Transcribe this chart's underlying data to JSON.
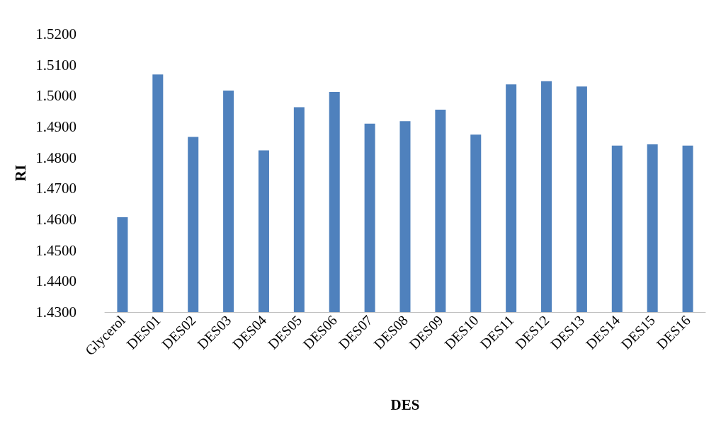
{
  "chart_data": {
    "type": "bar",
    "xlabel": "DES",
    "ylabel": "RI",
    "categories": [
      "Glycerol",
      "DES01",
      "DES02",
      "DES03",
      "DES04",
      "DES05",
      "DES06",
      "DES07",
      "DES08",
      "DES09",
      "DES10",
      "DES11",
      "DES12",
      "DES13",
      "DES14",
      "DES15",
      "DES16"
    ],
    "values": [
      1.4607,
      1.5069,
      1.4867,
      1.5017,
      1.4823,
      1.4963,
      1.5012,
      1.491,
      1.4918,
      1.4955,
      1.4874,
      1.5037,
      1.5047,
      1.503,
      1.4839,
      1.4843,
      1.4839
    ],
    "color": "#4f81bd",
    "ylim": [
      1.43,
      1.52
    ],
    "yticks": [
      {
        "value": 1.43,
        "label": "1.4300"
      },
      {
        "value": 1.44,
        "label": "1.4400"
      },
      {
        "value": 1.45,
        "label": "1.4500"
      },
      {
        "value": 1.46,
        "label": "1.4600"
      },
      {
        "value": 1.47,
        "label": "1.4700"
      },
      {
        "value": 1.48,
        "label": "1.4800"
      },
      {
        "value": 1.49,
        "label": "1.4900"
      },
      {
        "value": 1.5,
        "label": "1.5000"
      },
      {
        "value": 1.51,
        "label": "1.5100"
      },
      {
        "value": 1.52,
        "label": "1.5200"
      }
    ]
  }
}
